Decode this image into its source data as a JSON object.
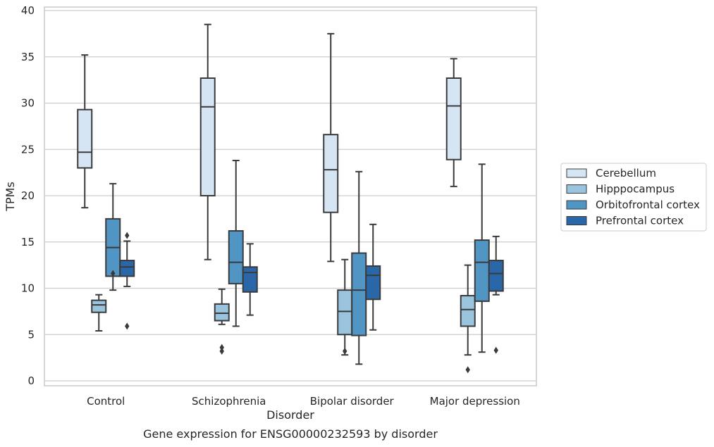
{
  "chart_data": {
    "type": "boxplot",
    "title": "Gene expression for ENSG00000232593 by disorder",
    "xlabel": "Disorder",
    "ylabel": "TPMs",
    "ylim": [
      0,
      40
    ],
    "yticks": [
      0,
      5,
      10,
      15,
      20,
      25,
      30,
      35,
      40
    ],
    "grid": true,
    "legend_position": "right",
    "categories": [
      "Control",
      "Schizophrenia",
      "Bipolar disorder",
      "Major depression"
    ],
    "series": [
      {
        "name": "Cerebellum",
        "color": "#d6e5f4",
        "boxes": [
          {
            "whislo": 18.7,
            "q1": 23.0,
            "med": 24.7,
            "q3": 29.3,
            "whishi": 35.2,
            "fliers": []
          },
          {
            "whislo": 13.1,
            "q1": 20.0,
            "med": 29.6,
            "q3": 32.7,
            "whishi": 38.5,
            "fliers": []
          },
          {
            "whislo": 12.9,
            "q1": 18.2,
            "med": 22.8,
            "q3": 26.6,
            "whishi": 37.5,
            "fliers": []
          },
          {
            "whislo": 21.0,
            "q1": 23.9,
            "med": 29.7,
            "q3": 32.7,
            "whishi": 34.8,
            "fliers": []
          }
        ]
      },
      {
        "name": "Hipppocampus",
        "color": "#9ac3de",
        "boxes": [
          {
            "whislo": 5.4,
            "q1": 7.4,
            "med": 8.2,
            "q3": 8.7,
            "whishi": 9.3,
            "fliers": []
          },
          {
            "whislo": 6.1,
            "q1": 6.5,
            "med": 7.3,
            "q3": 8.3,
            "whishi": 9.9,
            "fliers": [
              3.2,
              3.6
            ]
          },
          {
            "whislo": 2.8,
            "q1": 5.0,
            "med": 7.5,
            "q3": 9.8,
            "whishi": 13.1,
            "fliers": [
              3.2
            ]
          },
          {
            "whislo": 2.8,
            "q1": 5.9,
            "med": 7.7,
            "q3": 9.2,
            "whishi": 12.5,
            "fliers": [
              1.2
            ]
          }
        ]
      },
      {
        "name": "Orbitofrontal cortex",
        "color": "#5195c5",
        "boxes": [
          {
            "whislo": 9.8,
            "q1": 11.3,
            "med": 14.4,
            "q3": 17.5,
            "whishi": 21.3,
            "fliers": [
              11.6
            ]
          },
          {
            "whislo": 5.9,
            "q1": 10.5,
            "med": 12.8,
            "q3": 16.2,
            "whishi": 23.8,
            "fliers": []
          },
          {
            "whislo": 1.8,
            "q1": 4.9,
            "med": 9.8,
            "q3": 13.8,
            "whishi": 22.6,
            "fliers": []
          },
          {
            "whislo": 3.1,
            "q1": 8.6,
            "med": 12.8,
            "q3": 15.2,
            "whishi": 23.4,
            "fliers": []
          }
        ]
      },
      {
        "name": "Prefrontal cortex",
        "color": "#2a67a8",
        "boxes": [
          {
            "whislo": 10.2,
            "q1": 11.3,
            "med": 12.3,
            "q3": 13.0,
            "whishi": 15.1,
            "fliers": [
              5.9,
              15.7
            ]
          },
          {
            "whislo": 7.1,
            "q1": 9.6,
            "med": 11.7,
            "q3": 12.3,
            "whishi": 14.8,
            "fliers": []
          },
          {
            "whislo": 5.5,
            "q1": 8.8,
            "med": 11.4,
            "q3": 12.4,
            "whishi": 16.9,
            "fliers": []
          },
          {
            "whislo": 9.3,
            "q1": 9.7,
            "med": 11.6,
            "q3": 13.0,
            "whishi": 15.6,
            "fliers": [
              3.3
            ]
          }
        ]
      }
    ]
  }
}
